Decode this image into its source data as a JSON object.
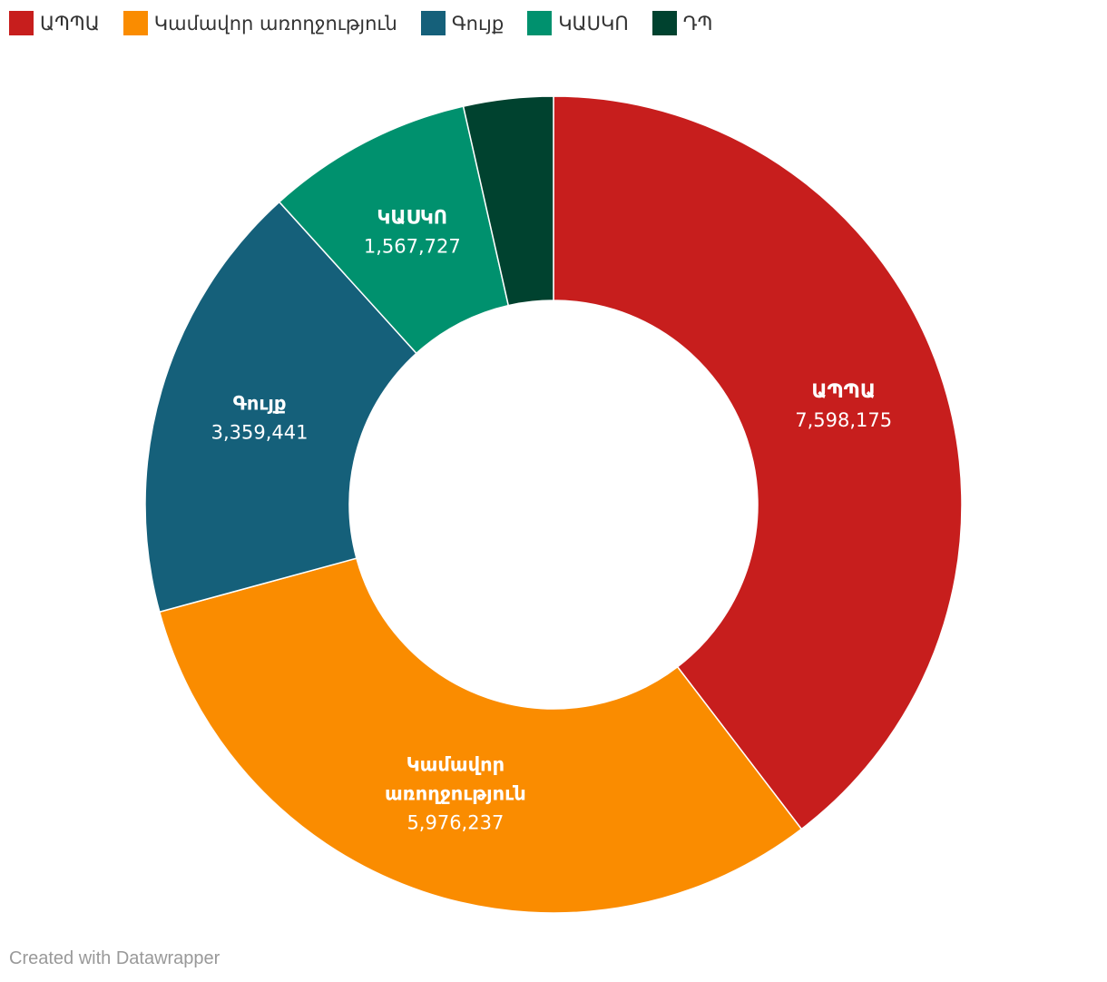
{
  "chart_data": {
    "type": "pie",
    "variant": "donut",
    "legend_position": "top-left",
    "categories": [
      "ԱՊՊԱ",
      "Կամավոր առողջություն",
      "Գույք",
      "ԿԱՍԿՈ",
      "ԴՊ"
    ],
    "values": [
      7598175,
      5976237,
      3359441,
      1567727,
      680000
    ],
    "value_labels": [
      "7,598,175",
      "5,976,237",
      "3,359,441",
      "1,567,727",
      ""
    ],
    "slice_label_lines": [
      [
        "ԱՊՊԱ"
      ],
      [
        "Կամավոր",
        "առողջություն"
      ],
      [
        "Գույք"
      ],
      [
        "ԿԱՍԿՈ"
      ],
      []
    ],
    "colors": [
      "#c71e1d",
      "#fa8c00",
      "#15607a",
      "#00916e",
      "#00422f"
    ]
  },
  "credit": "Created with Datawrapper"
}
